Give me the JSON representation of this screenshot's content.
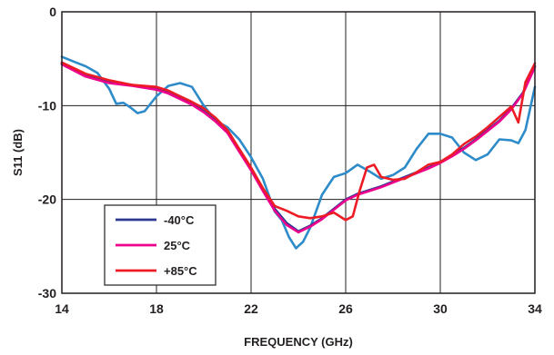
{
  "chart_data": {
    "type": "line",
    "title": "",
    "xlabel": "FREQUENCY (GHz)",
    "ylabel": "S11 (dB)",
    "xlim": [
      14,
      34
    ],
    "ylim": [
      -30,
      0
    ],
    "xticks": [
      14,
      18,
      22,
      26,
      30,
      34
    ],
    "yticks": [
      0,
      -10,
      -20,
      -30
    ],
    "grid": true,
    "legend_position": "lower-left",
    "series": [
      {
        "name": "-40°C",
        "color": "#2b3990",
        "x": [
          14,
          15,
          16,
          17,
          18,
          18.5,
          19,
          19.5,
          20,
          20.5,
          21,
          21.5,
          22,
          22.5,
          23,
          23.5,
          24,
          24.5,
          25,
          25.5,
          26,
          26.5,
          27,
          27.5,
          28,
          28.5,
          29,
          29.5,
          30,
          30.5,
          31,
          31.5,
          32,
          32.5,
          33,
          33.5,
          34
        ],
        "y": [
          -5.5,
          -6.8,
          -7.5,
          -7.8,
          -8.2,
          -8.6,
          -9.2,
          -9.8,
          -10.6,
          -11.6,
          -12.8,
          -14.8,
          -16.8,
          -19,
          -21,
          -22.5,
          -23.4,
          -22.8,
          -22,
          -21,
          -20,
          -19.4,
          -19,
          -18.6,
          -18.1,
          -17.6,
          -17.1,
          -16.6,
          -16,
          -15.3,
          -14.5,
          -13.6,
          -12.6,
          -11.6,
          -10.3,
          -8.6,
          -5.8
        ]
      },
      {
        "name": "25°C",
        "color": "#ec008c",
        "x": [
          14,
          15,
          16,
          17,
          18,
          18.5,
          19,
          19.5,
          20,
          20.5,
          21,
          21.5,
          22,
          22.5,
          23,
          23.5,
          24,
          24.5,
          25,
          25.5,
          26,
          26.5,
          27,
          27.5,
          28,
          28.5,
          29,
          29.5,
          30,
          30.5,
          31,
          31.5,
          32,
          32.5,
          33,
          33.5,
          34
        ],
        "y": [
          -5.6,
          -6.9,
          -7.6,
          -7.9,
          -8.3,
          -8.7,
          -9.3,
          -9.9,
          -10.7,
          -11.7,
          -12.9,
          -14.9,
          -16.9,
          -19.1,
          -21.2,
          -22.7,
          -23.5,
          -22.9,
          -22.1,
          -21.1,
          -20.1,
          -19.5,
          -19.1,
          -18.7,
          -18.2,
          -17.7,
          -17.2,
          -16.7,
          -16.1,
          -15.4,
          -14.6,
          -13.7,
          -12.7,
          -11.7,
          -10.4,
          -8.7,
          -5.9
        ]
      },
      {
        "name": "+85°C",
        "color": "#ed1c24",
        "x": [
          14,
          15,
          16,
          17,
          18,
          18.5,
          19,
          19.5,
          20,
          20.5,
          21,
          21.5,
          22,
          22.5,
          23,
          23.5,
          24,
          24.5,
          25,
          25.5,
          26,
          26.3,
          26.6,
          26.9,
          27.2,
          27.5,
          28,
          28.5,
          29,
          29.5,
          30,
          30.5,
          31,
          31.5,
          32,
          32.5,
          33,
          33.3,
          33.6,
          34
        ],
        "y": [
          -5.4,
          -6.6,
          -7.3,
          -7.8,
          -8,
          -8.4,
          -9,
          -9.6,
          -10.3,
          -11.3,
          -12.6,
          -14.6,
          -16.6,
          -18.8,
          -20.7,
          -21.2,
          -21.8,
          -22,
          -21.8,
          -21.4,
          -22.2,
          -21.8,
          -19,
          -16.6,
          -16.3,
          -17.6,
          -17.9,
          -17.8,
          -17.1,
          -16.3,
          -16,
          -15.2,
          -14.1,
          -13.3,
          -12.3,
          -11.2,
          -10.1,
          -11.8,
          -7.5,
          -5.5
        ]
      },
      {
        "name": "",
        "color": "#2e8bc9",
        "x": [
          14,
          14.5,
          15,
          15.5,
          16,
          16.3,
          16.6,
          16.9,
          17.2,
          17.5,
          18,
          18.5,
          19,
          19.5,
          20,
          20.5,
          21,
          21.5,
          22,
          22.5,
          23,
          23.3,
          23.6,
          23.9,
          24.2,
          24.5,
          25,
          25.5,
          26,
          26.5,
          27,
          27.5,
          28,
          28.5,
          29,
          29.5,
          30,
          30.5,
          31,
          31.5,
          32,
          32.5,
          33,
          33.3,
          33.6,
          34
        ],
        "y": [
          -4.8,
          -5.3,
          -5.8,
          -6.5,
          -8.2,
          -9.8,
          -9.7,
          -10.2,
          -10.8,
          -10.6,
          -9,
          -7.9,
          -7.6,
          -8,
          -10,
          -11.6,
          -12.3,
          -13.6,
          -15.5,
          -17.8,
          -21.3,
          -22.2,
          -24,
          -25.2,
          -24.5,
          -23,
          -19.5,
          -17.6,
          -17.2,
          -16.3,
          -17,
          -17.8,
          -17.4,
          -16.6,
          -14.6,
          -13,
          -13,
          -13.4,
          -15,
          -15.8,
          -15.2,
          -13.6,
          -13.7,
          -14,
          -12.6,
          -8
        ]
      }
    ]
  }
}
